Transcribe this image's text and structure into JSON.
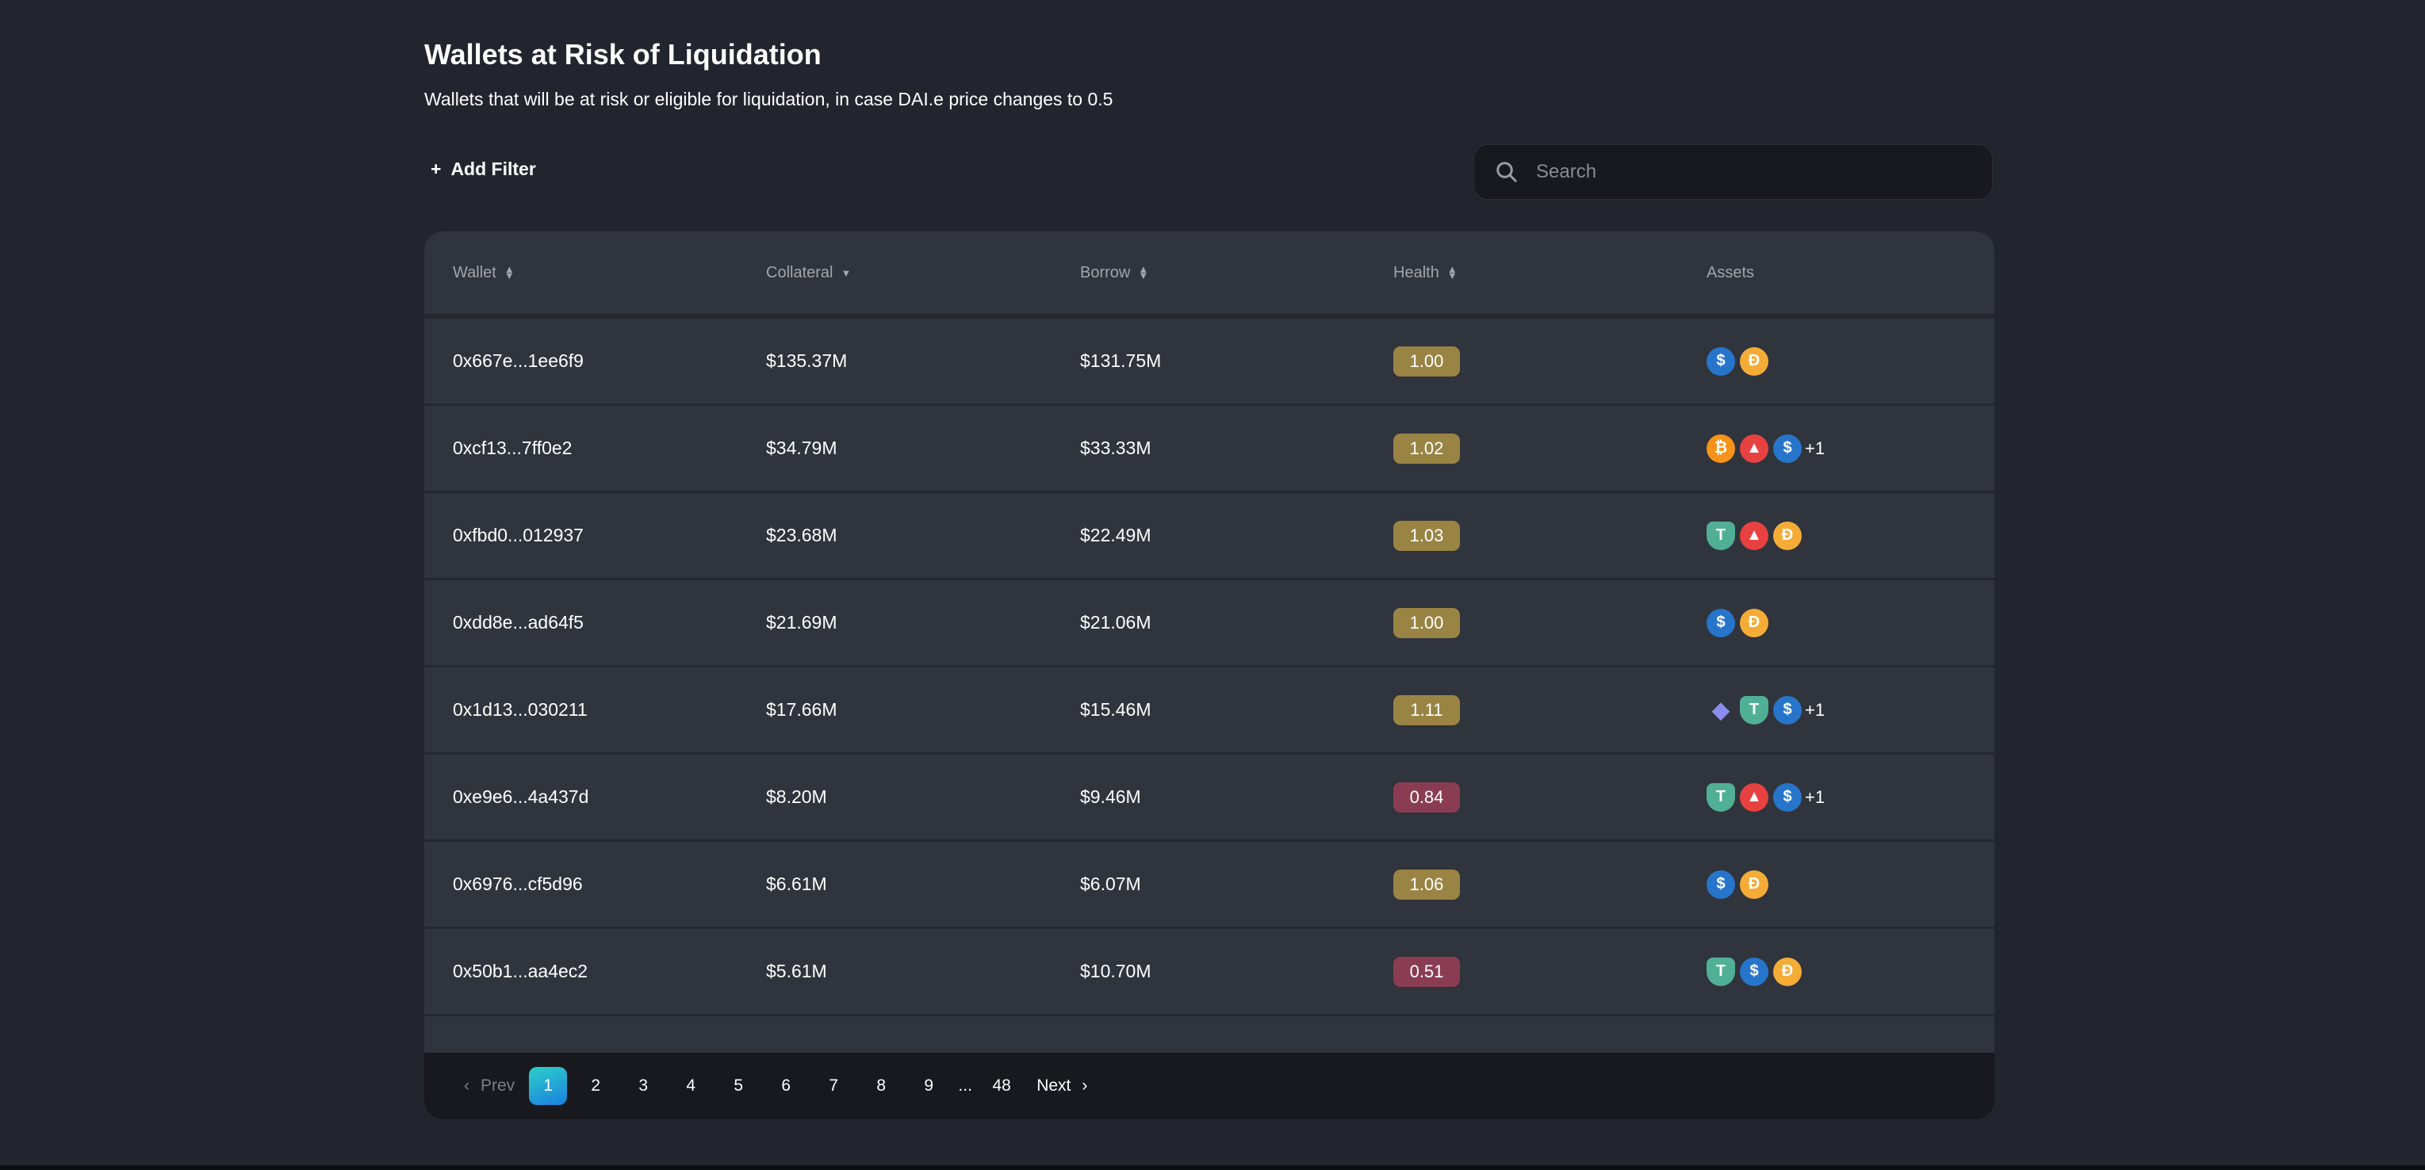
{
  "header": {
    "title": "Wallets at Risk of Liquidation",
    "subtitle": "Wallets that will be at risk or eligible for liquidation, in case DAI.e price changes to 0.5"
  },
  "toolbar": {
    "add_filter": "Add Filter",
    "search_placeholder": "Search"
  },
  "table": {
    "columns": [
      "Wallet",
      "Collateral",
      "Borrow",
      "Health",
      "Assets"
    ],
    "rows": [
      {
        "wallet": "0x667e...1ee6f9",
        "collateral": "$135.37M",
        "borrow": "$131.75M",
        "health": "1.00",
        "status": "warn",
        "assets": [
          "usdc",
          "dai"
        ],
        "more": ""
      },
      {
        "wallet": "0xcf13...7ff0e2",
        "collateral": "$34.79M",
        "borrow": "$33.33M",
        "health": "1.02",
        "status": "warn",
        "assets": [
          "btc",
          "avax",
          "usdc"
        ],
        "more": "+1"
      },
      {
        "wallet": "0xfbd0...012937",
        "collateral": "$23.68M",
        "borrow": "$22.49M",
        "health": "1.03",
        "status": "warn",
        "assets": [
          "usdt",
          "avax",
          "dai"
        ],
        "more": ""
      },
      {
        "wallet": "0xdd8e...ad64f5",
        "collateral": "$21.69M",
        "borrow": "$21.06M",
        "health": "1.00",
        "status": "warn",
        "assets": [
          "usdc",
          "dai"
        ],
        "more": ""
      },
      {
        "wallet": "0x1d13...030211",
        "collateral": "$17.66M",
        "borrow": "$15.46M",
        "health": "1.11",
        "status": "warn",
        "assets": [
          "eth",
          "usdt",
          "usdc"
        ],
        "more": "+1"
      },
      {
        "wallet": "0xe9e6...4a437d",
        "collateral": "$8.20M",
        "borrow": "$9.46M",
        "health": "0.84",
        "status": "danger",
        "assets": [
          "usdt",
          "avax",
          "usdc"
        ],
        "more": "+1"
      },
      {
        "wallet": "0x6976...cf5d96",
        "collateral": "$6.61M",
        "borrow": "$6.07M",
        "health": "1.06",
        "status": "warn",
        "assets": [
          "usdc",
          "dai"
        ],
        "more": ""
      },
      {
        "wallet": "0x50b1...aa4ec2",
        "collateral": "$5.61M",
        "borrow": "$10.70M",
        "health": "0.51",
        "status": "danger",
        "assets": [
          "usdt",
          "usdc",
          "dai"
        ],
        "more": ""
      }
    ]
  },
  "pagination": {
    "prev": "Prev",
    "next": "Next",
    "pages": [
      "1",
      "2",
      "3",
      "4",
      "5",
      "6",
      "7",
      "8",
      "9",
      "...",
      "48"
    ],
    "current": "1"
  },
  "colors": {
    "warn": "#9a8444",
    "danger": "#8a3d52",
    "usdc": "#2775ca",
    "dai": "#f5ac37",
    "btc": "#f7931a",
    "avax": "#e84142",
    "usdt": "#50af95",
    "eth": "#8c8cf0"
  }
}
